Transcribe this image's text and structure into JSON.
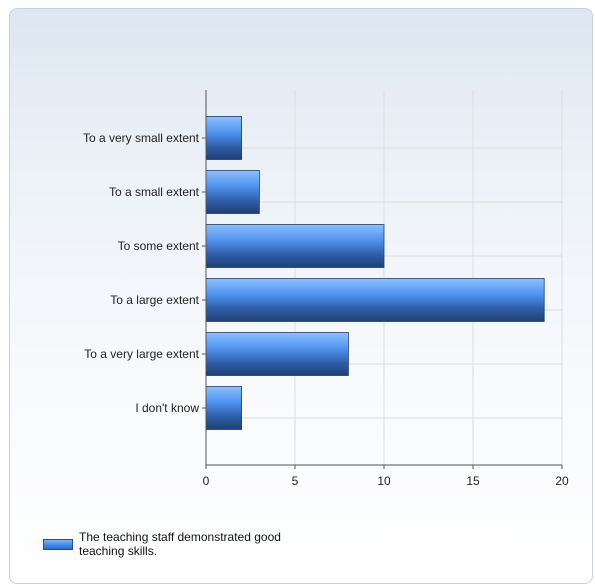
{
  "chart_data": {
    "type": "bar",
    "orientation": "horizontal",
    "categories": [
      "To a very small extent",
      "To a small extent",
      "To some extent",
      "To a large extent",
      "To a very large extent",
      "I don't know"
    ],
    "series": [
      {
        "name": "The teaching staff demonstrated good teaching skills.",
        "values": [
          2,
          3,
          10,
          19,
          8,
          2
        ]
      }
    ],
    "xlim": [
      0,
      20
    ],
    "x_ticks": [
      0,
      5,
      10,
      15,
      20
    ],
    "grid": true,
    "legend_position": "bottom-left",
    "colors": {
      "bar_light": "#7db4ff",
      "bar_mid": "#4a8ff0",
      "bar_dark": "#1f3f72",
      "grid": "#dddddd",
      "axis": "#555555"
    }
  },
  "legend": {
    "label": "The teaching staff demonstrated good teaching skills."
  }
}
